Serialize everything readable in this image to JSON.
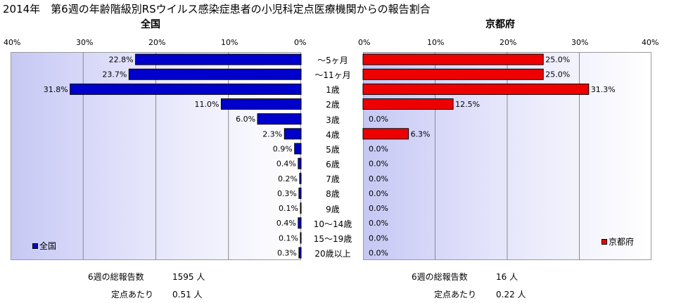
{
  "title": "2014年　第6週の年齢階級別RSウイルス感染症患者の小児科定点医療機関からの報告割合",
  "categories": [
    "～5ヶ月",
    "～11ヶ月",
    "1歳",
    "2歳",
    "3歳",
    "4歳",
    "5歳",
    "6歳",
    "7歳",
    "8歳",
    "9歳",
    "10～14歳",
    "15～19歳",
    "20歳以上"
  ],
  "left_panel": {
    "title": "全国",
    "ticks": [
      "40%",
      "30%",
      "20%",
      "10%",
      "0%"
    ],
    "legend": "全国",
    "color": "#0000cc",
    "footer": {
      "label1": "6週の総報告数",
      "value1": "1595 人",
      "label2": "定点あたり",
      "value2": "0.51 人"
    }
  },
  "right_panel": {
    "title": "京都府",
    "ticks": [
      "0%",
      "10%",
      "20%",
      "30%",
      "40%"
    ],
    "legend": "京都府",
    "color": "#ee0000",
    "footer": {
      "label1": "6週の総報告数",
      "value1": "16 人",
      "label2": "定点あたり",
      "value2": "0.22 人"
    }
  },
  "chart_data": [
    {
      "type": "bar",
      "title": "全国",
      "orientation": "horizontal-reversed",
      "categories": [
        "～5ヶ月",
        "～11ヶ月",
        "1歳",
        "2歳",
        "3歳",
        "4歳",
        "5歳",
        "6歳",
        "7歳",
        "8歳",
        "9歳",
        "10～14歳",
        "15～19歳",
        "20歳以上"
      ],
      "values": [
        22.8,
        23.7,
        31.8,
        11.0,
        6.0,
        2.3,
        0.9,
        0.4,
        0.2,
        0.3,
        0.1,
        0.4,
        0.1,
        0.3
      ],
      "value_labels": [
        "22.8%",
        "23.7%",
        "31.8%",
        "11.0%",
        "6.0%",
        "2.3%",
        "0.9%",
        "0.4%",
        "0.2%",
        "0.3%",
        "0.1%",
        "0.4%",
        "0.1%",
        "0.3%"
      ],
      "xlim": [
        0,
        40
      ],
      "grid": true,
      "legend": "bottom-left",
      "color": "#0000cc"
    },
    {
      "type": "bar",
      "title": "京都府",
      "orientation": "horizontal",
      "categories": [
        "～5ヶ月",
        "～11ヶ月",
        "1歳",
        "2歳",
        "3歳",
        "4歳",
        "5歳",
        "6歳",
        "7歳",
        "8歳",
        "9歳",
        "10～14歳",
        "15～19歳",
        "20歳以上"
      ],
      "values": [
        25.0,
        25.0,
        31.3,
        12.5,
        0.0,
        6.3,
        0.0,
        0.0,
        0.0,
        0.0,
        0.0,
        0.0,
        0.0,
        0.0
      ],
      "value_labels": [
        "25.0%",
        "25.0%",
        "31.3%",
        "12.5%",
        "0.0%",
        "6.3%",
        "0.0%",
        "0.0%",
        "0.0%",
        "0.0%",
        "0.0%",
        "0.0%",
        "0.0%",
        "0.0%"
      ],
      "xlim": [
        0,
        40
      ],
      "grid": true,
      "legend": "bottom-right",
      "color": "#ee0000"
    }
  ]
}
